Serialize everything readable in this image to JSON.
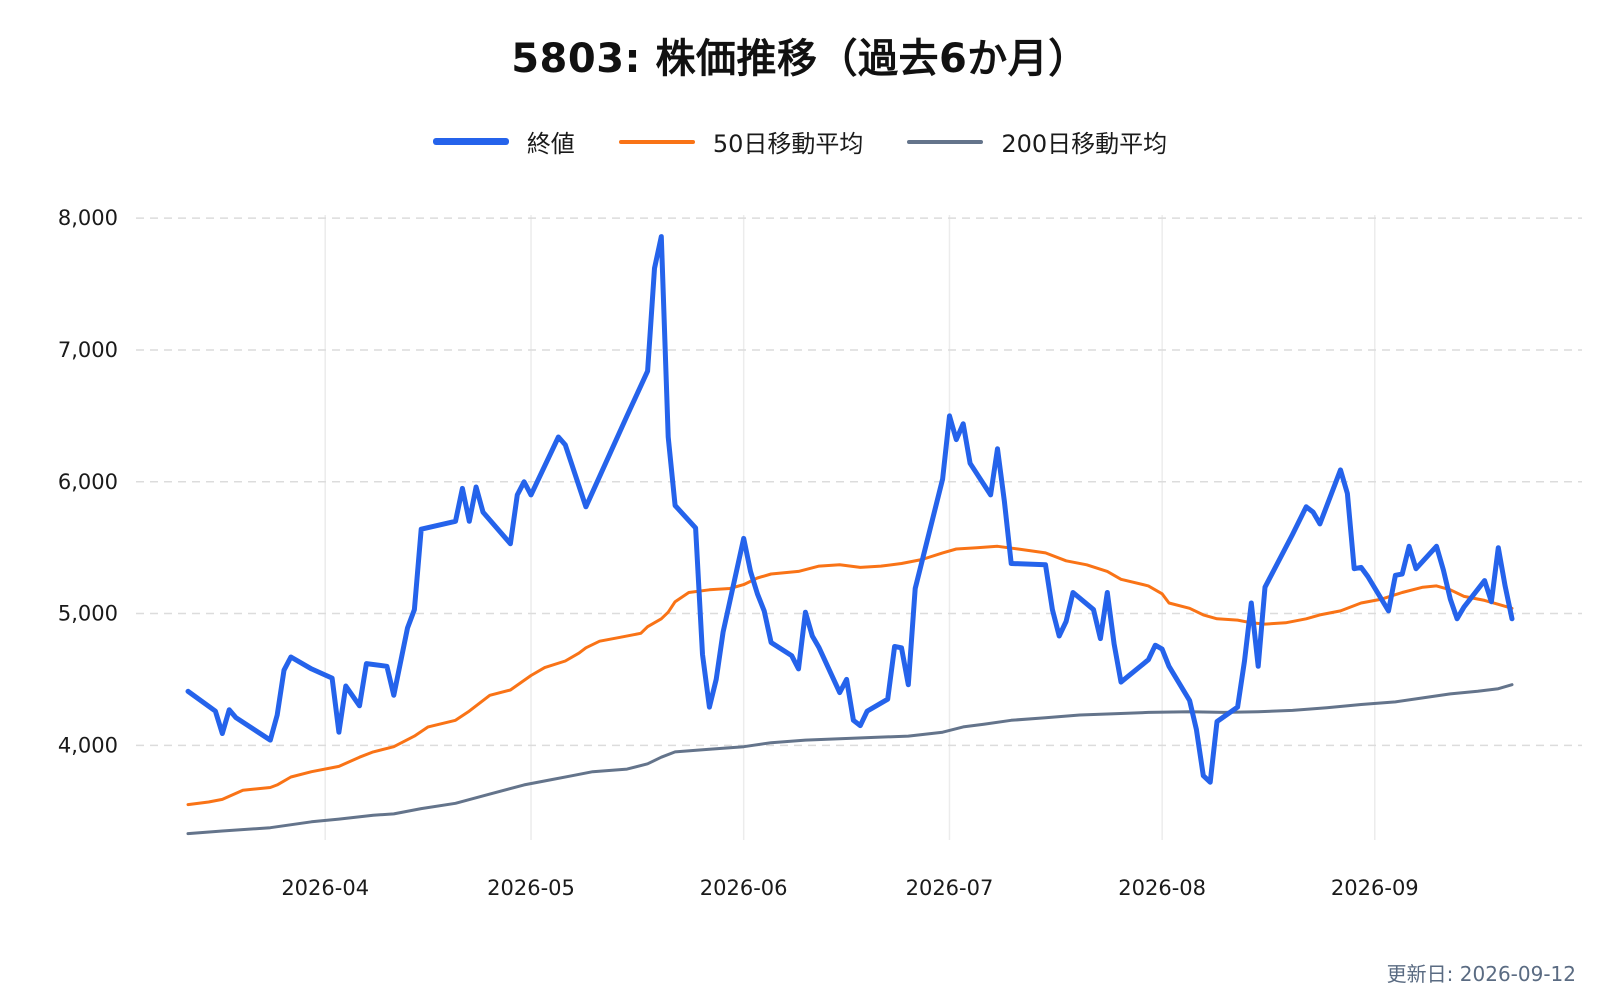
{
  "title": "5803: 株価推移（過去6か月）",
  "updated": "更新日: 2026-09-12",
  "chart_data": {
    "type": "line",
    "title": "5803: 株価推移（過去6か月）",
    "xlabel": "",
    "ylabel": "",
    "grid": true,
    "legend_position": "top-center",
    "xlim": [
      "2026-03-12",
      "2026-09-12"
    ],
    "ylim": [
      3130,
      8100
    ],
    "x_ticks": [
      "2026-04",
      "2026-05",
      "2026-06",
      "2026-07",
      "2026-08",
      "2026-09"
    ],
    "y_ticks": [
      4000,
      5000,
      6000,
      7000,
      8000
    ],
    "y_tick_labels": [
      "4,000",
      "5,000",
      "6,000",
      "7,000",
      "8,000"
    ],
    "series": [
      {
        "name": "終値",
        "color": "#2563eb",
        "points": [
          [
            "2026-03-12",
            4410
          ],
          [
            "2026-03-16",
            4260
          ],
          [
            "2026-03-17",
            4090
          ],
          [
            "2026-03-18",
            4270
          ],
          [
            "2026-03-19",
            4210
          ],
          [
            "2026-03-24",
            4040
          ],
          [
            "2026-03-25",
            4230
          ],
          [
            "2026-03-26",
            4570
          ],
          [
            "2026-03-27",
            4670
          ],
          [
            "2026-03-30",
            4580
          ],
          [
            "2026-04-02",
            4510
          ],
          [
            "2026-04-03",
            4100
          ],
          [
            "2026-04-04",
            4450
          ],
          [
            "2026-04-06",
            4300
          ],
          [
            "2026-04-07",
            4620
          ],
          [
            "2026-04-10",
            4600
          ],
          [
            "2026-04-11",
            4380
          ],
          [
            "2026-04-13",
            4890
          ],
          [
            "2026-04-14",
            5030
          ],
          [
            "2026-04-15",
            5640
          ],
          [
            "2026-04-20",
            5700
          ],
          [
            "2026-04-21",
            5950
          ],
          [
            "2026-04-22",
            5700
          ],
          [
            "2026-04-23",
            5960
          ],
          [
            "2026-04-24",
            5770
          ],
          [
            "2026-04-28",
            5530
          ],
          [
            "2026-04-29",
            5900
          ],
          [
            "2026-04-30",
            6000
          ],
          [
            "2026-05-01",
            5900
          ],
          [
            "2026-05-05",
            6340
          ],
          [
            "2026-05-06",
            6280
          ],
          [
            "2026-05-09",
            5810
          ],
          [
            "2026-05-15",
            6500
          ],
          [
            "2026-05-18",
            6840
          ],
          [
            "2026-05-19",
            7620
          ],
          [
            "2026-05-20",
            7860
          ],
          [
            "2026-05-21",
            6340
          ],
          [
            "2026-05-22",
            5820
          ],
          [
            "2026-05-25",
            5650
          ],
          [
            "2026-05-26",
            4690
          ],
          [
            "2026-05-27",
            4290
          ],
          [
            "2026-05-28",
            4500
          ],
          [
            "2026-05-29",
            4860
          ],
          [
            "2026-06-01",
            5570
          ],
          [
            "2026-06-02",
            5320
          ],
          [
            "2026-06-03",
            5150
          ],
          [
            "2026-06-04",
            5020
          ],
          [
            "2026-06-05",
            4780
          ],
          [
            "2026-06-08",
            4680
          ],
          [
            "2026-06-09",
            4580
          ],
          [
            "2026-06-10",
            5010
          ],
          [
            "2026-06-11",
            4830
          ],
          [
            "2026-06-12",
            4740
          ],
          [
            "2026-06-15",
            4400
          ],
          [
            "2026-06-16",
            4500
          ],
          [
            "2026-06-17",
            4190
          ],
          [
            "2026-06-18",
            4150
          ],
          [
            "2026-06-19",
            4260
          ],
          [
            "2026-06-22",
            4350
          ],
          [
            "2026-06-23",
            4750
          ],
          [
            "2026-06-24",
            4740
          ],
          [
            "2026-06-25",
            4460
          ],
          [
            "2026-06-26",
            5190
          ],
          [
            "2026-06-30",
            6020
          ],
          [
            "2026-07-01",
            6500
          ],
          [
            "2026-07-02",
            6320
          ],
          [
            "2026-07-03",
            6440
          ],
          [
            "2026-07-04",
            6140
          ],
          [
            "2026-07-07",
            5900
          ],
          [
            "2026-07-08",
            6250
          ],
          [
            "2026-07-09",
            5850
          ],
          [
            "2026-07-10",
            5380
          ],
          [
            "2026-07-15",
            5370
          ],
          [
            "2026-07-16",
            5030
          ],
          [
            "2026-07-17",
            4830
          ],
          [
            "2026-07-18",
            4940
          ],
          [
            "2026-07-19",
            5160
          ],
          [
            "2026-07-22",
            5030
          ],
          [
            "2026-07-23",
            4810
          ],
          [
            "2026-07-24",
            5160
          ],
          [
            "2026-07-25",
            4770
          ],
          [
            "2026-07-26",
            4480
          ],
          [
            "2026-07-30",
            4650
          ],
          [
            "2026-07-31",
            4760
          ],
          [
            "2026-08-01",
            4730
          ],
          [
            "2026-08-02",
            4600
          ],
          [
            "2026-08-05",
            4340
          ],
          [
            "2026-08-06",
            4120
          ],
          [
            "2026-08-07",
            3770
          ],
          [
            "2026-08-08",
            3720
          ],
          [
            "2026-08-09",
            4180
          ],
          [
            "2026-08-12",
            4290
          ],
          [
            "2026-08-13",
            4640
          ],
          [
            "2026-08-14",
            5080
          ],
          [
            "2026-08-15",
            4600
          ],
          [
            "2026-08-16",
            5200
          ],
          [
            "2026-08-20",
            5600
          ],
          [
            "2026-08-22",
            5810
          ],
          [
            "2026-08-23",
            5770
          ],
          [
            "2026-08-24",
            5680
          ],
          [
            "2026-08-27",
            6090
          ],
          [
            "2026-08-28",
            5910
          ],
          [
            "2026-08-29",
            5340
          ],
          [
            "2026-08-30",
            5350
          ],
          [
            "2026-08-31",
            5280
          ],
          [
            "2026-09-03",
            5020
          ],
          [
            "2026-09-04",
            5290
          ],
          [
            "2026-09-05",
            5300
          ],
          [
            "2026-09-06",
            5510
          ],
          [
            "2026-09-07",
            5340
          ],
          [
            "2026-09-10",
            5510
          ],
          [
            "2026-09-11",
            5330
          ],
          [
            "2026-09-12",
            5110
          ],
          [
            "2026-09-13",
            4960
          ],
          [
            "2026-09-14",
            5050
          ],
          [
            "2026-09-17",
            5250
          ],
          [
            "2026-09-18",
            5090
          ],
          [
            "2026-09-19",
            5500
          ],
          [
            "2026-09-20",
            5210
          ],
          [
            "2026-09-21",
            4960
          ]
        ]
      },
      {
        "name": "50日移動平均",
        "color": "#f97316",
        "points": [
          [
            "2026-03-12",
            3550
          ],
          [
            "2026-03-15",
            3570
          ],
          [
            "2026-03-17",
            3590
          ],
          [
            "2026-03-20",
            3660
          ],
          [
            "2026-03-24",
            3680
          ],
          [
            "2026-03-25",
            3700
          ],
          [
            "2026-03-27",
            3760
          ],
          [
            "2026-03-30",
            3800
          ],
          [
            "2026-04-03",
            3840
          ],
          [
            "2026-04-06",
            3910
          ],
          [
            "2026-04-08",
            3950
          ],
          [
            "2026-04-11",
            3990
          ],
          [
            "2026-04-14",
            4070
          ],
          [
            "2026-04-16",
            4140
          ],
          [
            "2026-04-20",
            4190
          ],
          [
            "2026-04-22",
            4260
          ],
          [
            "2026-04-25",
            4380
          ],
          [
            "2026-04-28",
            4420
          ],
          [
            "2026-05-01",
            4530
          ],
          [
            "2026-05-03",
            4590
          ],
          [
            "2026-05-06",
            4640
          ],
          [
            "2026-05-08",
            4700
          ],
          [
            "2026-05-09",
            4740
          ],
          [
            "2026-05-11",
            4790
          ],
          [
            "2026-05-14",
            4820
          ],
          [
            "2026-05-17",
            4850
          ],
          [
            "2026-05-18",
            4900
          ],
          [
            "2026-05-20",
            4960
          ],
          [
            "2026-05-21",
            5010
          ],
          [
            "2026-05-22",
            5090
          ],
          [
            "2026-05-24",
            5160
          ],
          [
            "2026-05-27",
            5180
          ],
          [
            "2026-05-30",
            5190
          ],
          [
            "2026-06-01",
            5220
          ],
          [
            "2026-06-03",
            5270
          ],
          [
            "2026-06-05",
            5300
          ],
          [
            "2026-06-09",
            5320
          ],
          [
            "2026-06-12",
            5360
          ],
          [
            "2026-06-15",
            5370
          ],
          [
            "2026-06-18",
            5350
          ],
          [
            "2026-06-21",
            5360
          ],
          [
            "2026-06-24",
            5380
          ],
          [
            "2026-06-27",
            5410
          ],
          [
            "2026-06-30",
            5460
          ],
          [
            "2026-07-02",
            5490
          ],
          [
            "2026-07-05",
            5500
          ],
          [
            "2026-07-08",
            5510
          ],
          [
            "2026-07-11",
            5490
          ],
          [
            "2026-07-15",
            5460
          ],
          [
            "2026-07-18",
            5400
          ],
          [
            "2026-07-21",
            5370
          ],
          [
            "2026-07-24",
            5320
          ],
          [
            "2026-07-26",
            5260
          ],
          [
            "2026-07-30",
            5210
          ],
          [
            "2026-08-01",
            5150
          ],
          [
            "2026-08-02",
            5080
          ],
          [
            "2026-08-05",
            5040
          ],
          [
            "2026-08-07",
            4990
          ],
          [
            "2026-08-09",
            4960
          ],
          [
            "2026-08-12",
            4950
          ],
          [
            "2026-08-14",
            4930
          ],
          [
            "2026-08-16",
            4920
          ],
          [
            "2026-08-19",
            4930
          ],
          [
            "2026-08-22",
            4960
          ],
          [
            "2026-08-24",
            4990
          ],
          [
            "2026-08-27",
            5020
          ],
          [
            "2026-08-30",
            5080
          ],
          [
            "2026-09-02",
            5110
          ],
          [
            "2026-09-05",
            5160
          ],
          [
            "2026-09-08",
            5200
          ],
          [
            "2026-09-10",
            5210
          ],
          [
            "2026-09-12",
            5180
          ],
          [
            "2026-09-14",
            5130
          ],
          [
            "2026-09-17",
            5100
          ],
          [
            "2026-09-19",
            5070
          ],
          [
            "2026-09-21",
            5040
          ]
        ]
      },
      {
        "name": "200日移動平均",
        "color": "#64748b",
        "points": [
          [
            "2026-03-12",
            3330
          ],
          [
            "2026-03-17",
            3350
          ],
          [
            "2026-03-24",
            3375
          ],
          [
            "2026-03-30",
            3420
          ],
          [
            "2026-04-03",
            3440
          ],
          [
            "2026-04-08",
            3470
          ],
          [
            "2026-04-11",
            3480
          ],
          [
            "2026-04-15",
            3520
          ],
          [
            "2026-04-20",
            3560
          ],
          [
            "2026-04-25",
            3630
          ],
          [
            "2026-04-30",
            3700
          ],
          [
            "2026-05-04",
            3740
          ],
          [
            "2026-05-07",
            3770
          ],
          [
            "2026-05-10",
            3800
          ],
          [
            "2026-05-15",
            3820
          ],
          [
            "2026-05-18",
            3860
          ],
          [
            "2026-05-20",
            3910
          ],
          [
            "2026-05-22",
            3950
          ],
          [
            "2026-05-27",
            3970
          ],
          [
            "2026-06-01",
            3990
          ],
          [
            "2026-06-05",
            4020
          ],
          [
            "2026-06-10",
            4040
          ],
          [
            "2026-06-15",
            4050
          ],
          [
            "2026-06-20",
            4060
          ],
          [
            "2026-06-25",
            4070
          ],
          [
            "2026-06-30",
            4100
          ],
          [
            "2026-07-03",
            4140
          ],
          [
            "2026-07-06",
            4160
          ],
          [
            "2026-07-10",
            4190
          ],
          [
            "2026-07-15",
            4210
          ],
          [
            "2026-07-20",
            4230
          ],
          [
            "2026-07-25",
            4240
          ],
          [
            "2026-07-30",
            4250
          ],
          [
            "2026-08-05",
            4255
          ],
          [
            "2026-08-10",
            4250
          ],
          [
            "2026-08-15",
            4255
          ],
          [
            "2026-08-20",
            4265
          ],
          [
            "2026-08-25",
            4285
          ],
          [
            "2026-08-30",
            4310
          ],
          [
            "2026-09-04",
            4330
          ],
          [
            "2026-09-08",
            4360
          ],
          [
            "2026-09-12",
            4390
          ],
          [
            "2026-09-16",
            4410
          ],
          [
            "2026-09-19",
            4430
          ],
          [
            "2026-09-21",
            4460
          ]
        ]
      }
    ]
  }
}
